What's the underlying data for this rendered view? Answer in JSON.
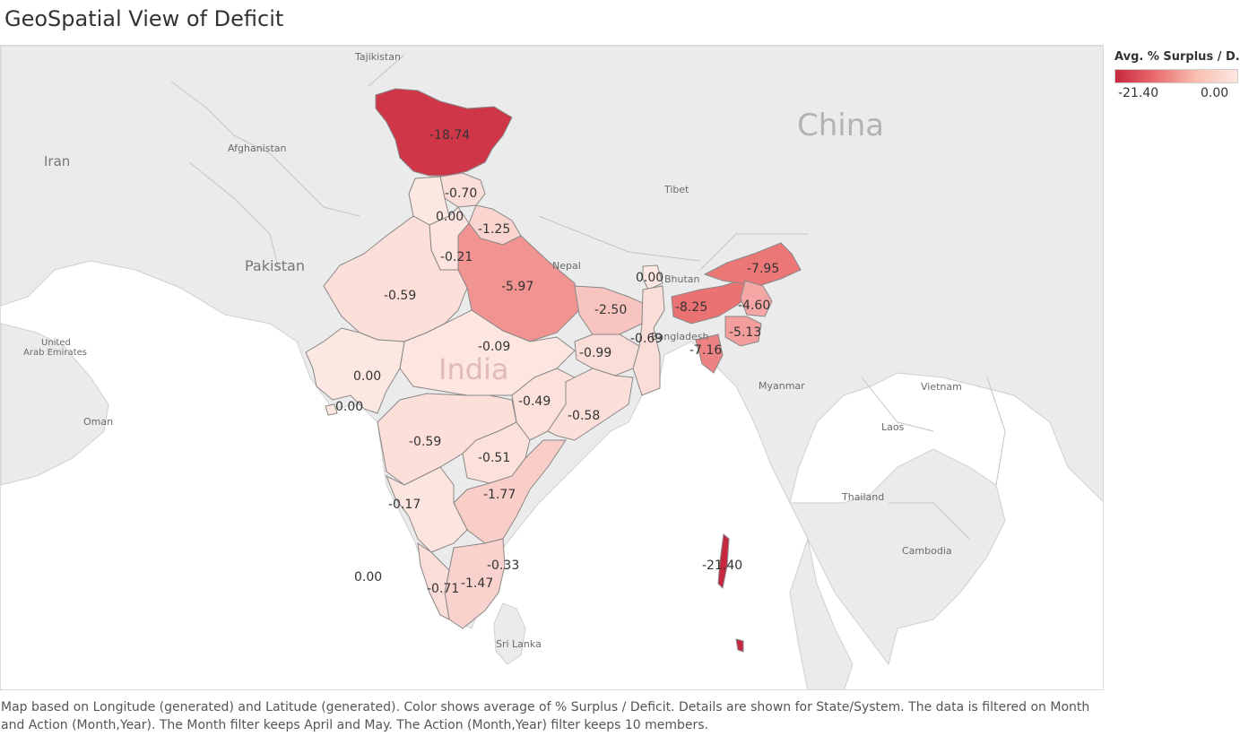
{
  "title": "GeoSpatial View of Deficit",
  "legend": {
    "title": "Avg. % Surplus / D..",
    "min_label": "-21.40",
    "max_label": "0.00",
    "min_color": "#c8283f",
    "max_color": "#fde7e1"
  },
  "countries": {
    "china": "China",
    "pakistan": "Pakistan",
    "india": "India",
    "iran": "Iran",
    "afghanistan": "Afghanistan",
    "tajikistan": "Tajikistan",
    "tibet": "Tibet",
    "nepal": "Nepal",
    "bhutan": "Bhutan",
    "bangladesh": "Bangladesh",
    "myanmar": "Myanmar",
    "uae": "United\nArab Emirates",
    "oman": "Oman",
    "laos": "Laos",
    "vietnam": "Vietnam",
    "thailand": "Thailand",
    "cambodia": "Cambodia",
    "srilanka": "Sri Lanka"
  },
  "regions": [
    {
      "value": -18.74,
      "label": "-18.74"
    },
    {
      "value": -0.7,
      "label": "-0.70"
    },
    {
      "value": 0.0,
      "label": "0.00"
    },
    {
      "value": -1.25,
      "label": "-1.25"
    },
    {
      "value": -0.21,
      "label": "-0.21"
    },
    {
      "value": -0.59,
      "label": "-0.59"
    },
    {
      "value": -5.97,
      "label": "-5.97"
    },
    {
      "value": -2.5,
      "label": "-2.50"
    },
    {
      "value": 0.0,
      "label": "0.00"
    },
    {
      "value": -8.25,
      "label": "-8.25"
    },
    {
      "value": -7.95,
      "label": "-7.95"
    },
    {
      "value": -4.6,
      "label": "-4.60"
    },
    {
      "value": -5.13,
      "label": "-5.13"
    },
    {
      "value": -7.16,
      "label": "-7.16"
    },
    {
      "value": -0.09,
      "label": "-0.09"
    },
    {
      "value": -0.99,
      "label": "-0.99"
    },
    {
      "value": -0.69,
      "label": "-0.69"
    },
    {
      "value": 0.0,
      "label": "0.00"
    },
    {
      "value": 0.0,
      "label": "0.00"
    },
    {
      "value": -0.49,
      "label": "-0.49"
    },
    {
      "value": -0.58,
      "label": "-0.58"
    },
    {
      "value": -0.59,
      "label": "-0.59"
    },
    {
      "value": -0.51,
      "label": "-0.51"
    },
    {
      "value": -1.77,
      "label": "-1.77"
    },
    {
      "value": -0.17,
      "label": "-0.17"
    },
    {
      "value": -0.33,
      "label": "-0.33"
    },
    {
      "value": -1.47,
      "label": "-1.47"
    },
    {
      "value": -0.71,
      "label": "-0.71"
    },
    {
      "value": 0.0,
      "label": "0.00"
    },
    {
      "value": -21.4,
      "label": "-21.40"
    }
  ],
  "caption": "Map based on Longitude (generated) and Latitude (generated).  Color shows average of % Surplus / Deficit.  Details are shown for State/System. The data is filtered on Month and Action (Month,Year). The Month filter keeps April and May. The Action (Month,Year) filter keeps 10 members."
}
